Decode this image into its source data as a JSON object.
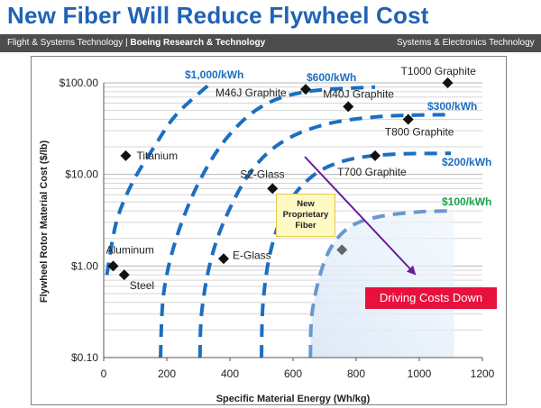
{
  "slide": {
    "title": "New Fiber Will Reduce Flywheel Cost",
    "banner_left_plain": "Flight & Systems Technology | ",
    "banner_left_bold": "Boeing Research & Technology",
    "banner_right": "Systems & Electronics Technology",
    "colors": {
      "title": "#1f63b5",
      "curve": "#1b6fc2",
      "callout_red": "#e8103d",
      "green_label": "#1aa34a",
      "arrow": "#6a1b9a"
    }
  },
  "chart_data": {
    "type": "scatter",
    "xlabel": "Specific Material Energy (Wh/kg)",
    "ylabel": "Flywheel Rotor Material  Cost ($/lb)",
    "x_ticks": [
      0,
      200,
      400,
      600,
      800,
      1000,
      1200
    ],
    "y_ticks": [
      {
        "value": 0.1,
        "label": "$0.10"
      },
      {
        "value": 1,
        "label": "$1.00"
      },
      {
        "value": 10,
        "label": "$10.00"
      },
      {
        "value": 100,
        "label": "$100.00"
      }
    ],
    "xlim": [
      0,
      1200
    ],
    "ylim": [
      0.1,
      100
    ],
    "y_scale": "log",
    "grid": "horizontal",
    "points": [
      {
        "name": "Titanium",
        "x": 70,
        "y": 16
      },
      {
        "name": "Aluminum",
        "x": 30,
        "y": 1.0
      },
      {
        "name": "Steel",
        "x": 65,
        "y": 0.8
      },
      {
        "name": "E-Glass",
        "x": 380,
        "y": 1.2
      },
      {
        "name": "S2-Glass",
        "x": 535,
        "y": 7
      },
      {
        "name": "M46J Graphite",
        "x": 640,
        "y": 85
      },
      {
        "name": "M40J Graphite",
        "x": 775,
        "y": 55
      },
      {
        "name": "T700 Graphite",
        "x": 860,
        "y": 16
      },
      {
        "name": "T800 Graphite",
        "x": 965,
        "y": 40
      },
      {
        "name": "T1000 Graphite",
        "x": 1090,
        "y": 100
      }
    ],
    "new_fiber_point": {
      "x": 755,
      "y": 1.5
    },
    "cost_curves": [
      {
        "label": "$1,000/kWh",
        "k": 7,
        "x_end": 340
      },
      {
        "label": "$600/kWh",
        "k": 3,
        "x_end": 860
      },
      {
        "label": "$300/kWh",
        "k": 1.1,
        "x_end": 1100
      },
      {
        "label": "$200/kWh",
        "k": 0.65,
        "x_end": 1100
      },
      {
        "label": "$100/kWh",
        "k": 0.14,
        "x_end": 1110
      }
    ],
    "annotations": {
      "new_fiber": "New Proprietary Fiber",
      "driving_costs": "Driving Costs Down"
    }
  }
}
